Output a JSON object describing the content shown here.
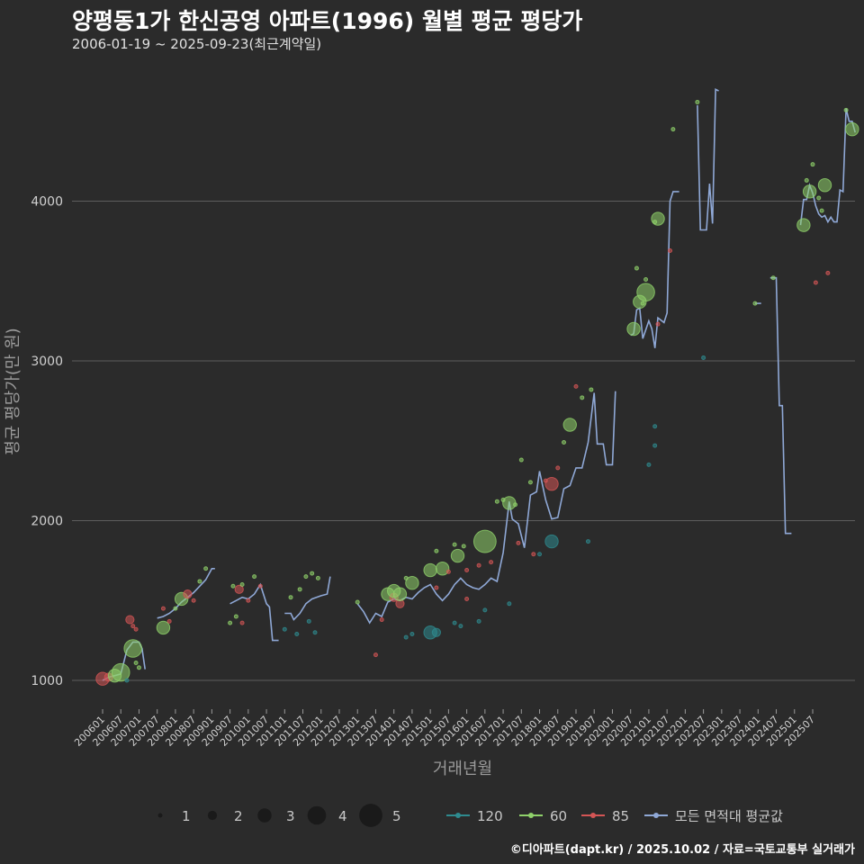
{
  "header": {
    "title": "양평동1가 한신공영 아파트(1996) 월별 평균 평당가",
    "subtitle": "2006-01-19 ~ 2025-09-23(최근계약일)"
  },
  "caption": "©디아파트(dapt.kr) / 2025.10.02 / 자료=국토교통부 실거래가",
  "colors": {
    "background": "#2b2b2b",
    "grid": "#5e5e5e",
    "line": "#8fa8d6",
    "s120": "#2e8b8f",
    "s60": "#8fd16a",
    "s85": "#d45555"
  },
  "chart_data": {
    "type": "scatter",
    "xlabel": "거래년월",
    "ylabel": "평균 평당가(만 원)",
    "y_ticks": [
      1000,
      2000,
      3000,
      4000
    ],
    "ylim": [
      800,
      4900
    ],
    "x_ticks": [
      "200601",
      "200607",
      "200701",
      "200707",
      "200801",
      "200807",
      "200901",
      "200907",
      "201001",
      "201007",
      "201101",
      "201107",
      "201201",
      "201207",
      "201301",
      "201307",
      "201401",
      "201407",
      "201501",
      "201507",
      "201601",
      "201607",
      "201701",
      "201707",
      "201801",
      "201807",
      "201901",
      "201907",
      "202001",
      "202007",
      "202101",
      "202107",
      "202201",
      "202207",
      "202301",
      "202307",
      "202401",
      "202407",
      "202501",
      "202507"
    ],
    "grid": true,
    "size_legend": {
      "title": "",
      "values": [
        "1",
        "2",
        "3",
        "4",
        "5"
      ]
    },
    "series_legend": [
      "120",
      "60",
      "85",
      "모든 면적대 평균값"
    ],
    "avg_line": [
      [
        [
          "2006-01",
          1000
        ],
        [
          "2006-03",
          1020
        ],
        [
          "2006-05",
          1030
        ],
        [
          "2006-07",
          1040
        ],
        [
          "2006-09",
          1190
        ],
        [
          "2006-11",
          1240
        ],
        [
          "2007-01",
          1240
        ],
        [
          "2007-02",
          1200
        ],
        [
          "2007-03",
          1070
        ]
      ],
      [
        [
          "2007-07",
          1390
        ],
        [
          "2007-09",
          1400
        ],
        [
          "2007-11",
          1420
        ],
        [
          "2008-01",
          1450
        ],
        [
          "2008-03",
          1490
        ],
        [
          "2008-05",
          1520
        ],
        [
          "2008-07",
          1550
        ],
        [
          "2008-09",
          1590
        ],
        [
          "2008-11",
          1630
        ],
        [
          "2009-01",
          1700
        ],
        [
          "2009-02",
          1700
        ]
      ],
      [
        [
          "2009-07",
          1480
        ],
        [
          "2009-09",
          1500
        ],
        [
          "2009-11",
          1520
        ],
        [
          "2010-01",
          1510
        ],
        [
          "2010-03",
          1540
        ],
        [
          "2010-05",
          1600
        ],
        [
          "2010-07",
          1480
        ],
        [
          "2010-08",
          1460
        ],
        [
          "2010-09",
          1250
        ],
        [
          "2010-11",
          1250
        ]
      ],
      [
        [
          "2011-01",
          1420
        ],
        [
          "2011-03",
          1420
        ],
        [
          "2011-04",
          1380
        ],
        [
          "2011-06",
          1420
        ],
        [
          "2011-08",
          1480
        ],
        [
          "2011-10",
          1510
        ],
        [
          "2012-01",
          1530
        ],
        [
          "2012-03",
          1540
        ],
        [
          "2012-04",
          1650
        ]
      ],
      [
        [
          "2013-01",
          1480
        ],
        [
          "2013-03",
          1430
        ],
        [
          "2013-05",
          1360
        ],
        [
          "2013-07",
          1420
        ],
        [
          "2013-09",
          1400
        ],
        [
          "2013-11",
          1490
        ],
        [
          "2014-01",
          1510
        ],
        [
          "2014-03",
          1500
        ],
        [
          "2014-05",
          1520
        ],
        [
          "2014-07",
          1510
        ],
        [
          "2014-09",
          1550
        ],
        [
          "2014-11",
          1580
        ],
        [
          "2015-01",
          1600
        ],
        [
          "2015-03",
          1540
        ],
        [
          "2015-05",
          1500
        ],
        [
          "2015-07",
          1540
        ],
        [
          "2015-09",
          1600
        ],
        [
          "2015-11",
          1640
        ],
        [
          "2016-01",
          1600
        ],
        [
          "2016-03",
          1580
        ],
        [
          "2016-05",
          1570
        ],
        [
          "2016-07",
          1600
        ],
        [
          "2016-09",
          1640
        ],
        [
          "2016-11",
          1620
        ],
        [
          "2017-01",
          1800
        ],
        [
          "2017-03",
          2120
        ],
        [
          "2017-04",
          2010
        ],
        [
          "2017-06",
          1980
        ],
        [
          "2017-08",
          1830
        ],
        [
          "2017-10",
          2160
        ],
        [
          "2017-12",
          2180
        ],
        [
          "2018-01",
          2310
        ],
        [
          "2018-03",
          2130
        ],
        [
          "2018-05",
          2010
        ],
        [
          "2018-07",
          2020
        ],
        [
          "2018-09",
          2200
        ],
        [
          "2018-11",
          2220
        ],
        [
          "2019-01",
          2330
        ],
        [
          "2019-03",
          2330
        ],
        [
          "2019-05",
          2490
        ],
        [
          "2019-07",
          2800
        ],
        [
          "2019-08",
          2480
        ],
        [
          "2019-10",
          2480
        ],
        [
          "2019-11",
          2350
        ],
        [
          "2020-01",
          2350
        ],
        [
          "2020-02",
          2810
        ]
      ],
      [
        [
          "2020-07",
          3160
        ],
        [
          "2020-08",
          3170
        ],
        [
          "2020-09",
          3320
        ],
        [
          "2020-10",
          3330
        ],
        [
          "2020-11",
          3140
        ],
        [
          "2021-01",
          3250
        ],
        [
          "2021-02",
          3200
        ],
        [
          "2021-03",
          3080
        ],
        [
          "2021-04",
          3270
        ],
        [
          "2021-06",
          3240
        ],
        [
          "2021-07",
          3300
        ],
        [
          "2021-08",
          4000
        ],
        [
          "2021-09",
          4060
        ],
        [
          "2021-11",
          4060
        ]
      ],
      [
        [
          "2022-05",
          4600
        ],
        [
          "2022-06",
          3820
        ],
        [
          "2022-08",
          3820
        ],
        [
          "2022-09",
          4110
        ],
        [
          "2022-10",
          3860
        ],
        [
          "2022-11",
          4700
        ],
        [
          "2022-12",
          4690
        ]
      ],
      [
        [
          "2023-12",
          3360
        ],
        [
          "2024-02",
          3360
        ]
      ],
      [
        [
          "2024-05",
          3520
        ],
        [
          "2024-07",
          3520
        ],
        [
          "2024-08",
          2720
        ],
        [
          "2024-09",
          2720
        ],
        [
          "2024-10",
          1920
        ],
        [
          "2024-12",
          1920
        ]
      ],
      [
        [
          "2025-03",
          3850
        ],
        [
          "2025-04",
          4010
        ],
        [
          "2025-05",
          4010
        ],
        [
          "2025-06",
          4100
        ],
        [
          "2025-07",
          4050
        ],
        [
          "2025-08",
          3970
        ],
        [
          "2025-09",
          3920
        ],
        [
          "2025-10",
          3900
        ],
        [
          "2025-11",
          3910
        ],
        [
          "2025-12",
          3870
        ],
        [
          "2026-01",
          3900
        ],
        [
          "2026-02",
          3870
        ],
        [
          "2026-03",
          3870
        ],
        [
          "2026-04",
          4070
        ],
        [
          "2026-05",
          4060
        ],
        [
          "2026-06",
          4580
        ],
        [
          "2026-07",
          4500
        ],
        [
          "2026-08",
          4500
        ],
        [
          "2026-09",
          4430
        ]
      ]
    ],
    "points": [
      [
        "2006-01",
        1010,
        3,
        "85"
      ],
      [
        "2006-03",
        1020,
        2,
        "85"
      ],
      [
        "2006-05",
        1030,
        3,
        "60"
      ],
      [
        "2006-07",
        1050,
        4,
        "60"
      ],
      [
        "2006-09",
        1000,
        1,
        "120"
      ],
      [
        "2006-11",
        1200,
        4,
        "60"
      ],
      [
        "2006-10",
        1380,
        2,
        "85"
      ],
      [
        "2006-11",
        1340,
        1,
        "85"
      ],
      [
        "2006-12",
        1110,
        1,
        "60"
      ],
      [
        "2007-01",
        1080,
        1,
        "60"
      ],
      [
        "2006-12",
        1320,
        1,
        "85"
      ],
      [
        "2007-09",
        1330,
        3,
        "60"
      ],
      [
        "2007-09",
        1450,
        1,
        "85"
      ],
      [
        "2007-11",
        1370,
        1,
        "85"
      ],
      [
        "2008-01",
        1450,
        1,
        "60"
      ],
      [
        "2008-03",
        1510,
        3,
        "60"
      ],
      [
        "2008-05",
        1540,
        2,
        "85"
      ],
      [
        "2008-07",
        1500,
        1,
        "85"
      ],
      [
        "2008-09",
        1620,
        1,
        "60"
      ],
      [
        "2008-11",
        1700,
        1,
        "60"
      ],
      [
        "2009-07",
        1360,
        1,
        "60"
      ],
      [
        "2009-08",
        1590,
        1,
        "60"
      ],
      [
        "2009-09",
        1400,
        1,
        "60"
      ],
      [
        "2009-10",
        1570,
        2,
        "85"
      ],
      [
        "2009-11",
        1600,
        1,
        "60"
      ],
      [
        "2009-11",
        1360,
        1,
        "85"
      ],
      [
        "2010-01",
        1500,
        1,
        "85"
      ],
      [
        "2010-03",
        1650,
        1,
        "60"
      ],
      [
        "2010-05",
        1590,
        1,
        "85"
      ],
      [
        "2011-01",
        1320,
        1,
        "120"
      ],
      [
        "2011-03",
        1520,
        1,
        "60"
      ],
      [
        "2011-05",
        1290,
        1,
        "120"
      ],
      [
        "2011-06",
        1570,
        1,
        "60"
      ],
      [
        "2011-08",
        1650,
        1,
        "60"
      ],
      [
        "2011-09",
        1370,
        1,
        "120"
      ],
      [
        "2011-10",
        1670,
        1,
        "60"
      ],
      [
        "2011-11",
        1300,
        1,
        "120"
      ],
      [
        "2011-12",
        1640,
        1,
        "60"
      ],
      [
        "2013-01",
        1490,
        1,
        "60"
      ],
      [
        "2013-07",
        1160,
        1,
        "85"
      ],
      [
        "2013-09",
        1380,
        1,
        "85"
      ],
      [
        "2013-11",
        1540,
        3,
        "60"
      ],
      [
        "2014-01",
        1520,
        2,
        "85"
      ],
      [
        "2014-01",
        1560,
        3,
        "60"
      ],
      [
        "2014-03",
        1480,
        2,
        "85"
      ],
      [
        "2014-03",
        1540,
        3,
        "60"
      ],
      [
        "2014-05",
        1640,
        1,
        "60"
      ],
      [
        "2014-05",
        1270,
        1,
        "120"
      ],
      [
        "2014-07",
        1610,
        3,
        "60"
      ],
      [
        "2014-07",
        1290,
        1,
        "120"
      ],
      [
        "2015-01",
        1300,
        3,
        "120"
      ],
      [
        "2015-01",
        1690,
        3,
        "60"
      ],
      [
        "2015-03",
        1580,
        1,
        "85"
      ],
      [
        "2015-03",
        1810,
        1,
        "60"
      ],
      [
        "2015-03",
        1300,
        2,
        "120"
      ],
      [
        "2015-05",
        1700,
        3,
        "60"
      ],
      [
        "2015-07",
        1680,
        1,
        "85"
      ],
      [
        "2015-09",
        1850,
        1,
        "60"
      ],
      [
        "2015-09",
        1360,
        1,
        "120"
      ],
      [
        "2015-10",
        1780,
        3,
        "60"
      ],
      [
        "2015-11",
        1340,
        1,
        "120"
      ],
      [
        "2015-12",
        1840,
        1,
        "60"
      ],
      [
        "2016-01",
        1510,
        1,
        "85"
      ],
      [
        "2016-01",
        1690,
        1,
        "85"
      ],
      [
        "2016-05",
        1370,
        1,
        "120"
      ],
      [
        "2016-05",
        1720,
        1,
        "85"
      ],
      [
        "2016-07",
        1870,
        5,
        "60"
      ],
      [
        "2016-07",
        1440,
        1,
        "120"
      ],
      [
        "2016-09",
        1740,
        1,
        "85"
      ],
      [
        "2016-11",
        2120,
        1,
        "60"
      ],
      [
        "2017-01",
        2130,
        1,
        "60"
      ],
      [
        "2017-03",
        2110,
        3,
        "60"
      ],
      [
        "2017-03",
        1480,
        1,
        "120"
      ],
      [
        "2017-05",
        2100,
        1,
        "60"
      ],
      [
        "2017-06",
        1860,
        1,
        "85"
      ],
      [
        "2017-07",
        2380,
        1,
        "60"
      ],
      [
        "2017-10",
        2240,
        1,
        "60"
      ],
      [
        "2017-11",
        1790,
        1,
        "85"
      ],
      [
        "2018-01",
        1790,
        1,
        "120"
      ],
      [
        "2018-03",
        2250,
        1,
        "85"
      ],
      [
        "2018-05",
        1870,
        3,
        "120"
      ],
      [
        "2018-05",
        2230,
        3,
        "85"
      ],
      [
        "2018-07",
        2330,
        1,
        "85"
      ],
      [
        "2018-09",
        2490,
        1,
        "60"
      ],
      [
        "2018-11",
        2600,
        3,
        "60"
      ],
      [
        "2019-01",
        2840,
        1,
        "85"
      ],
      [
        "2019-03",
        2770,
        1,
        "60"
      ],
      [
        "2019-05",
        1870,
        1,
        "120"
      ],
      [
        "2019-06",
        2820,
        1,
        "60"
      ],
      [
        "2020-08",
        3200,
        3,
        "60"
      ],
      [
        "2020-09",
        3580,
        1,
        "60"
      ],
      [
        "2020-10",
        3370,
        3,
        "60"
      ],
      [
        "2020-11",
        3360,
        1,
        "60"
      ],
      [
        "2020-12",
        3510,
        1,
        "60"
      ],
      [
        "2020-12",
        3430,
        4,
        "60"
      ],
      [
        "2021-01",
        2350,
        1,
        "120"
      ],
      [
        "2021-03",
        2470,
        1,
        "120"
      ],
      [
        "2021-03",
        2590,
        1,
        "120"
      ],
      [
        "2021-03",
        3870,
        1,
        "60"
      ],
      [
        "2021-04",
        3890,
        3,
        "60"
      ],
      [
        "2021-04",
        3230,
        1,
        "85"
      ],
      [
        "2021-08",
        3690,
        1,
        "85"
      ],
      [
        "2021-09",
        4450,
        1,
        "60"
      ],
      [
        "2022-05",
        4620,
        1,
        "60"
      ],
      [
        "2022-07",
        3020,
        1,
        "120"
      ],
      [
        "2023-12",
        3360,
        1,
        "60"
      ],
      [
        "2024-06",
        3520,
        1,
        "60"
      ],
      [
        "2025-04",
        3850,
        3,
        "60"
      ],
      [
        "2025-05",
        4130,
        1,
        "60"
      ],
      [
        "2025-06",
        4060,
        3,
        "60"
      ],
      [
        "2025-07",
        4230,
        1,
        "60"
      ],
      [
        "2025-09",
        4020,
        1,
        "60"
      ],
      [
        "2025-10",
        3940,
        1,
        "60"
      ],
      [
        "2025-11",
        4100,
        3,
        "60"
      ],
      [
        "2025-12",
        3550,
        1,
        "85"
      ],
      [
        "2025-08",
        3490,
        1,
        "85"
      ],
      [
        "2026-06",
        4570,
        1,
        "60"
      ],
      [
        "2026-08",
        4450,
        3,
        "60"
      ]
    ]
  }
}
